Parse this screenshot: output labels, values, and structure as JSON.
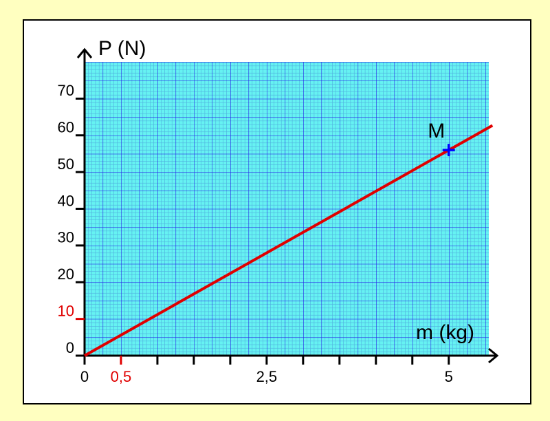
{
  "chart_data": {
    "type": "line",
    "x_label": "m (kg)",
    "y_label": "P (N)",
    "x": [
      0,
      5.6
    ],
    "series": [
      {
        "color": "#e00000",
        "values": [
          0,
          62.7
        ]
      }
    ],
    "points": [
      {
        "label": "M",
        "x": 5,
        "y": 56,
        "color": "#0000ff"
      }
    ],
    "xlim": [
      0,
      5.55
    ],
    "ylim": [
      0,
      80
    ],
    "xticks": [
      0,
      {
        "value": 0.5,
        "label": "0,5",
        "color": "#e00000"
      },
      {
        "value": 1,
        "label": null
      },
      {
        "value": 1.5,
        "label": null
      },
      {
        "value": 2,
        "label": null
      },
      {
        "value": 2.5,
        "label": "2,5"
      },
      {
        "value": 3,
        "label": null
      },
      {
        "value": 3.5,
        "label": null
      },
      {
        "value": 4,
        "label": null
      },
      {
        "value": 4.5,
        "label": null
      },
      5
    ],
    "yticks": [
      0,
      {
        "value": 10,
        "label": "10",
        "color": "#e00000"
      },
      20,
      30,
      40,
      50,
      60,
      70
    ],
    "grid": true
  }
}
